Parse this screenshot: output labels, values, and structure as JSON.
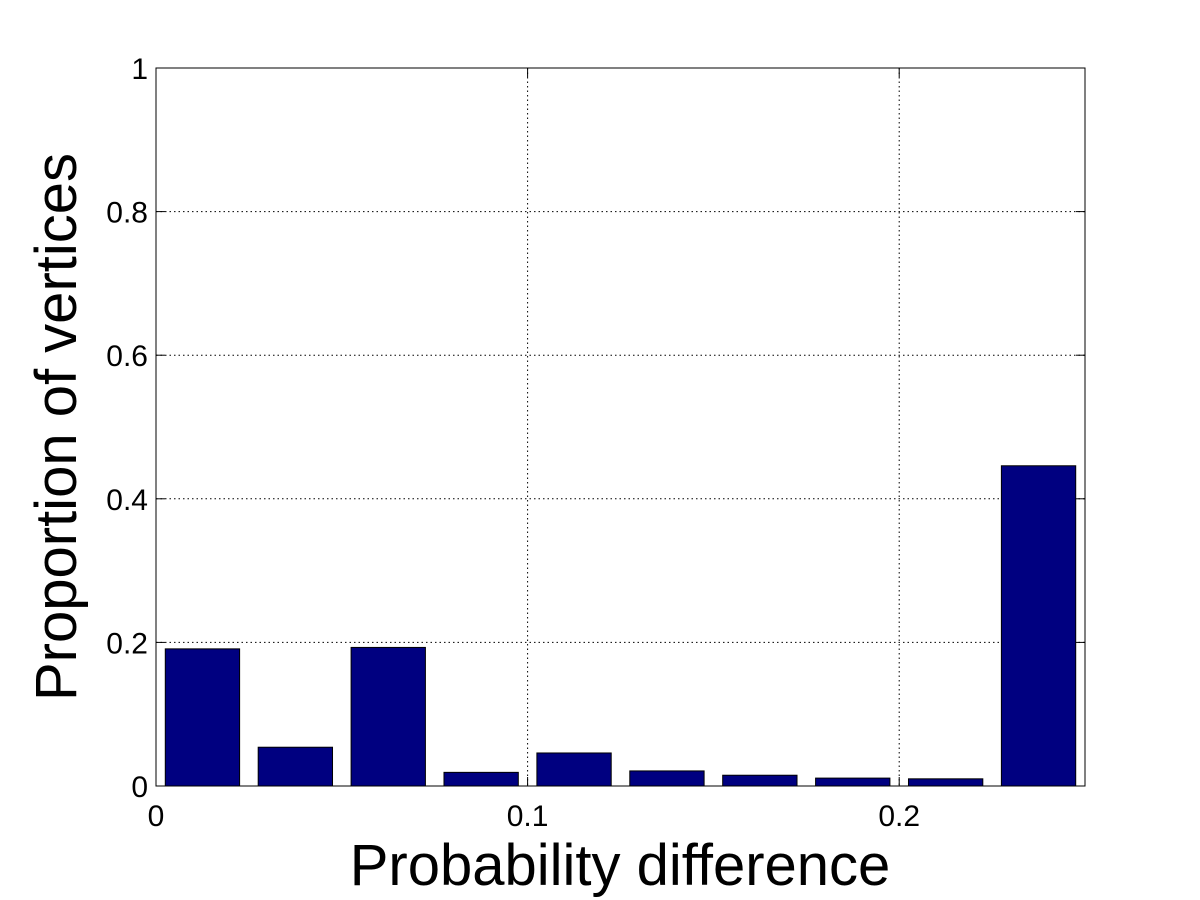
{
  "chart_data": {
    "type": "bar",
    "title": "",
    "xlabel": "Probability difference",
    "ylabel": "Proportion of vertices",
    "xlim": [
      0,
      0.25
    ],
    "ylim": [
      0,
      1
    ],
    "bar_width": 0.02,
    "x": [
      0.0125,
      0.0375,
      0.0625,
      0.0875,
      0.1125,
      0.1375,
      0.1625,
      0.1875,
      0.2125,
      0.2375
    ],
    "values": [
      0.191,
      0.054,
      0.193,
      0.019,
      0.046,
      0.021,
      0.015,
      0.011,
      0.01,
      0.446
    ],
    "x_ticks": [
      0,
      0.1,
      0.2
    ],
    "x_tick_labels": [
      "0",
      "0.1",
      "0.2"
    ],
    "y_ticks": [
      0,
      0.2,
      0.4,
      0.6,
      0.8,
      1
    ],
    "y_tick_labels": [
      "0",
      "0.2",
      "0.4",
      "0.6",
      "0.8",
      "1"
    ],
    "grid": true,
    "grid_style": "dotted",
    "bar_color": "#000080",
    "bar_edge_color": "#000000"
  }
}
